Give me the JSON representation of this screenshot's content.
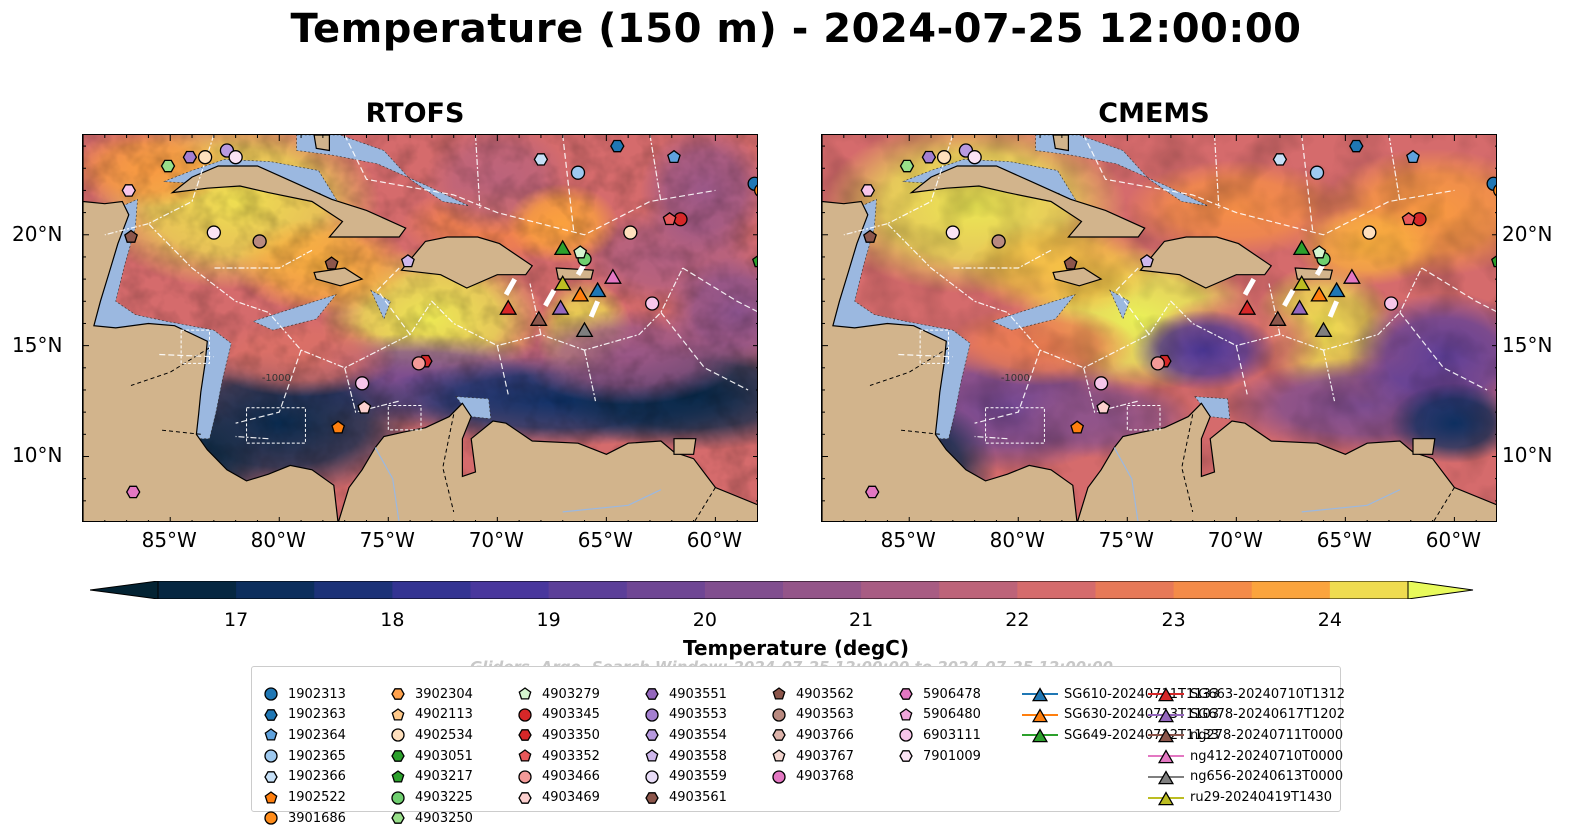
{
  "title": "Temperature (150 m) - 2024-07-25 12:00:00",
  "panels": [
    {
      "title": "RTOFS"
    },
    {
      "title": "CMEMS"
    }
  ],
  "lon_labels": [
    "85°W",
    "80°W",
    "75°W",
    "70°W",
    "65°W",
    "60°W"
  ],
  "lat_labels": [
    "20°N",
    "15°N",
    "10°N"
  ],
  "extent": {
    "lon_min": -89,
    "lon_max": -58,
    "lat_min": 7,
    "lat_max": 24.5
  },
  "contour_label": "-1000",
  "colorbar": {
    "label": "Temperature (degC)",
    "min": 16.5,
    "max": 24.5,
    "step": 0.5,
    "ticks": [
      "17",
      "18",
      "19",
      "20",
      "21",
      "22",
      "23",
      "24"
    ],
    "extend": "both",
    "colormap": "thermal"
  },
  "watermark": "Gliders, Argo, Search Window: 2024-07-25 12:00:00 to 2024-07-25 12:00:00",
  "legend": [
    {
      "label": "1902313",
      "marker": "o",
      "color": "#1f77b4"
    },
    {
      "label": "1902363",
      "marker": "h",
      "color": "#1f77b4"
    },
    {
      "label": "1902364",
      "marker": "p",
      "color": "#5fa2dd"
    },
    {
      "label": "1902365",
      "marker": "o",
      "color": "#9ec9ef"
    },
    {
      "label": "1902366",
      "marker": "h",
      "color": "#c6e0f7"
    },
    {
      "label": "1902522",
      "marker": "p",
      "color": "#ff7f0e"
    },
    {
      "label": "3901686",
      "marker": "o",
      "color": "#ff8c1a"
    },
    {
      "label": "3902304",
      "marker": "h",
      "color": "#ffa24d"
    },
    {
      "label": "4902113",
      "marker": "p",
      "color": "#ffc98a"
    },
    {
      "label": "4902534",
      "marker": "o",
      "color": "#ffe0bd"
    },
    {
      "label": "4903051",
      "marker": "h",
      "color": "#2ca02c"
    },
    {
      "label": "4903217",
      "marker": "p",
      "color": "#2ca02c"
    },
    {
      "label": "4903225",
      "marker": "o",
      "color": "#6fcf6f"
    },
    {
      "label": "4903250",
      "marker": "h",
      "color": "#98df8a"
    },
    {
      "label": "4903279",
      "marker": "p",
      "color": "#d5f5cf"
    },
    {
      "label": "4903345",
      "marker": "o",
      "color": "#d62728"
    },
    {
      "label": "4903350",
      "marker": "h",
      "color": "#d62728"
    },
    {
      "label": "4903352",
      "marker": "p",
      "color": "#e8585a"
    },
    {
      "label": "4903466",
      "marker": "o",
      "color": "#f39a98"
    },
    {
      "label": "4903469",
      "marker": "h",
      "color": "#fcd0cf"
    },
    {
      "label": "4903551",
      "marker": "h",
      "color": "#9467bd"
    },
    {
      "label": "4903553",
      "marker": "o",
      "color": "#a47fd0"
    },
    {
      "label": "4903554",
      "marker": "h",
      "color": "#b89ae0"
    },
    {
      "label": "4903558",
      "marker": "p",
      "color": "#cfb8ec"
    },
    {
      "label": "4903559",
      "marker": "o",
      "color": "#e8dcf7"
    },
    {
      "label": "4903561",
      "marker": "h",
      "color": "#8c564b"
    },
    {
      "label": "4903562",
      "marker": "p",
      "color": "#8c564b"
    },
    {
      "label": "4903563",
      "marker": "o",
      "color": "#b98a80"
    },
    {
      "label": "4903766",
      "marker": "h",
      "color": "#dcb3aa"
    },
    {
      "label": "4903767",
      "marker": "p",
      "color": "#f3d6cf"
    },
    {
      "label": "4903768",
      "marker": "o",
      "color": "#e377c2"
    },
    {
      "label": "5906478",
      "marker": "h",
      "color": "#e377c2"
    },
    {
      "label": "5906480",
      "marker": "p",
      "color": "#f0a6da"
    },
    {
      "label": "6903111",
      "marker": "o",
      "color": "#f7c6ea"
    },
    {
      "label": "7901009",
      "marker": "h",
      "color": "#fbe3f4"
    },
    {
      "label": "SG610-20240711T1133",
      "marker": "^",
      "color": "#1f77b4"
    },
    {
      "label": "SG630-20240713T1103",
      "marker": "^",
      "color": "#ff7f0e"
    },
    {
      "label": "SG649-20240712T1133",
      "marker": "^",
      "color": "#2ca02c"
    },
    {
      "label": "SG663-20240710T1312",
      "marker": "^",
      "color": "#d62728"
    },
    {
      "label": "SG678-20240617T1202",
      "marker": "^",
      "color": "#9467bd"
    },
    {
      "label": "ng278-20240711T0000",
      "marker": "^",
      "color": "#8c564b"
    },
    {
      "label": "ng412-20240710T0000",
      "marker": "^",
      "color": "#e377c2"
    },
    {
      "label": "ng656-20240613T0000",
      "marker": "^",
      "color": "#7f7f7f"
    },
    {
      "label": "ru29-20240419T1430",
      "marker": "^",
      "color": "#bcbd22"
    }
  ],
  "floats": [
    {
      "lon": -58.2,
      "lat": 22.3,
      "marker": "o",
      "color": "#1f77b4"
    },
    {
      "lon": -64.5,
      "lat": 24.0,
      "marker": "h",
      "color": "#1f77b4"
    },
    {
      "lon": -61.9,
      "lat": 23.5,
      "marker": "p",
      "color": "#5fa2dd"
    },
    {
      "lon": -66.3,
      "lat": 22.8,
      "marker": "o",
      "color": "#9ec9ef"
    },
    {
      "lon": -68.0,
      "lat": 23.4,
      "marker": "h",
      "color": "#c6e0f7"
    },
    {
      "lon": -77.3,
      "lat": 11.3,
      "marker": "p",
      "color": "#ff7f0e"
    },
    {
      "lon": -57.9,
      "lat": 22.0,
      "marker": "o",
      "color": "#ff8c1a"
    },
    {
      "lon": -83.4,
      "lat": 23.5,
      "marker": "o",
      "color": "#ffe0bd"
    },
    {
      "lon": -85.1,
      "lat": 23.1,
      "marker": "h",
      "color": "#98df8a"
    },
    {
      "lon": -58.0,
      "lat": 18.8,
      "marker": "p",
      "color": "#2ca02c"
    },
    {
      "lon": -66.0,
      "lat": 18.9,
      "marker": "o",
      "color": "#6fcf6f"
    },
    {
      "lon": -66.2,
      "lat": 19.2,
      "marker": "p",
      "color": "#d5f5cf"
    },
    {
      "lon": -61.6,
      "lat": 20.7,
      "marker": "o",
      "color": "#d62728"
    },
    {
      "lon": -62.1,
      "lat": 20.7,
      "marker": "p",
      "color": "#e8585a"
    },
    {
      "lon": -73.3,
      "lat": 14.3,
      "marker": "h",
      "color": "#d62728"
    },
    {
      "lon": -73.6,
      "lat": 14.2,
      "marker": "o",
      "color": "#f39a98"
    },
    {
      "lon": -76.1,
      "lat": 12.2,
      "marker": "p",
      "color": "#fcd0cf"
    },
    {
      "lon": -83.0,
      "lat": 20.1,
      "marker": "o",
      "color": "#fbe3f4"
    },
    {
      "lon": -80.9,
      "lat": 19.7,
      "marker": "o",
      "color": "#b98a80"
    },
    {
      "lon": -77.6,
      "lat": 18.7,
      "marker": "p",
      "color": "#8c564b"
    },
    {
      "lon": -86.8,
      "lat": 19.9,
      "marker": "p",
      "color": "#8c564b"
    },
    {
      "lon": -84.1,
      "lat": 23.5,
      "marker": "h",
      "color": "#a47fd0"
    },
    {
      "lon": -82.4,
      "lat": 23.8,
      "marker": "o",
      "color": "#b89ae0"
    },
    {
      "lon": -74.1,
      "lat": 18.8,
      "marker": "p",
      "color": "#cfb8ec"
    },
    {
      "lon": -86.9,
      "lat": 22.0,
      "marker": "h",
      "color": "#f7c6ea"
    },
    {
      "lon": -82.0,
      "lat": 23.5,
      "marker": "o",
      "color": "#fbe3f4"
    },
    {
      "lon": -76.2,
      "lat": 13.3,
      "marker": "o",
      "color": "#f7c6ea"
    },
    {
      "lon": -86.7,
      "lat": 8.4,
      "marker": "h",
      "color": "#e377c2"
    },
    {
      "lon": -63.9,
      "lat": 20.1,
      "marker": "o",
      "color": "#ffe0bd"
    },
    {
      "lon": -62.9,
      "lat": 16.9,
      "marker": "o",
      "color": "#f7c6ea"
    }
  ],
  "gliders": [
    {
      "lon": -69.5,
      "lat": 16.7,
      "color": "#d62728"
    },
    {
      "lon": -68.1,
      "lat": 16.2,
      "color": "#8c564b"
    },
    {
      "lon": -67.1,
      "lat": 16.7,
      "color": "#9467bd"
    },
    {
      "lon": -66.0,
      "lat": 15.7,
      "color": "#7f7f7f"
    },
    {
      "lon": -66.2,
      "lat": 17.3,
      "color": "#ff7f0e"
    },
    {
      "lon": -65.4,
      "lat": 17.5,
      "color": "#1f77b4"
    },
    {
      "lon": -64.7,
      "lat": 18.1,
      "color": "#e377c2"
    },
    {
      "lon": -67.0,
      "lat": 17.8,
      "color": "#bcbd22"
    },
    {
      "lon": -67.0,
      "lat": 19.4,
      "color": "#2ca02c"
    }
  ]
}
